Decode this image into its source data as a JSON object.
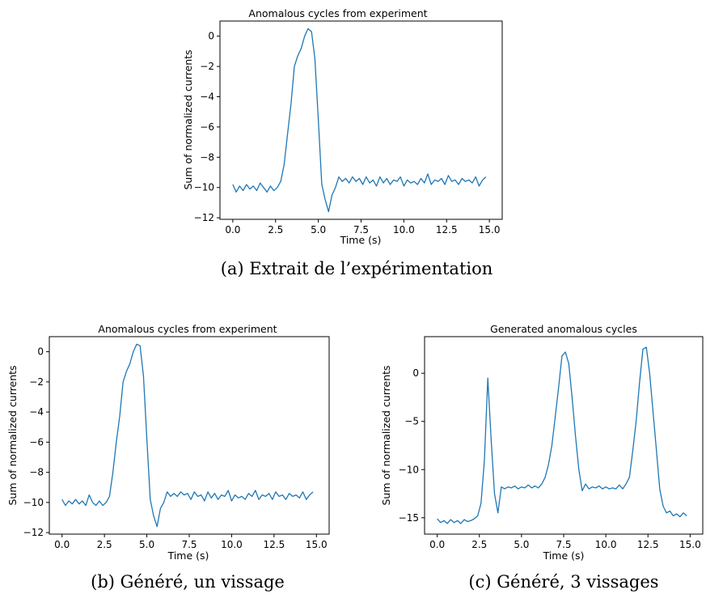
{
  "chart_data": [
    {
      "id": "a",
      "type": "line",
      "title": "Anomalous cycles from experiment",
      "xlabel": "Time (s)",
      "ylabel": "Sum of normalized currents",
      "xlim": [
        -0.75,
        15.75
      ],
      "ylim": [
        -12.1,
        1.0
      ],
      "xticks": [
        0,
        2.5,
        5,
        7.5,
        10,
        12.5,
        15
      ],
      "xtick_labels": [
        "0.0",
        "2.5",
        "5.0",
        "7.5",
        "10.0",
        "12.5",
        "15.0"
      ],
      "yticks": [
        0,
        -2,
        -4,
        -6,
        -8,
        -10,
        -12
      ],
      "ytick_labels": [
        "0",
        "−2",
        "−4",
        "−6",
        "−8",
        "−10",
        "−12"
      ],
      "grid": false,
      "caption": "(a) Extrait de l’expérimentation",
      "series": [
        {
          "color": "#1f77b4",
          "x": [
            0,
            0.2,
            0.4,
            0.6,
            0.8,
            1.0,
            1.2,
            1.4,
            1.6,
            1.8,
            2.0,
            2.2,
            2.4,
            2.6,
            2.8,
            3.0,
            3.2,
            3.4,
            3.6,
            3.8,
            4.0,
            4.2,
            4.4,
            4.6,
            4.8,
            5.0,
            5.2,
            5.4,
            5.6,
            5.8,
            6.0,
            6.2,
            6.4,
            6.6,
            6.8,
            7.0,
            7.2,
            7.4,
            7.6,
            7.8,
            8.0,
            8.2,
            8.4,
            8.6,
            8.8,
            9.0,
            9.2,
            9.4,
            9.6,
            9.8,
            10.0,
            10.2,
            10.4,
            10.6,
            10.8,
            11.0,
            11.2,
            11.4,
            11.6,
            11.8,
            12.0,
            12.2,
            12.4,
            12.6,
            12.8,
            13.0,
            13.2,
            13.4,
            13.6,
            13.8,
            14.0,
            14.2,
            14.4,
            14.6,
            14.8
          ],
          "y": [
            -9.8,
            -10.3,
            -9.9,
            -10.2,
            -9.8,
            -10.1,
            -9.9,
            -10.2,
            -9.7,
            -10.0,
            -10.3,
            -9.9,
            -10.2,
            -10.0,
            -9.6,
            -8.5,
            -6.5,
            -4.5,
            -2.0,
            -1.3,
            -0.8,
            0.0,
            0.5,
            0.3,
            -1.5,
            -5.5,
            -9.8,
            -10.8,
            -11.6,
            -10.5,
            -10.0,
            -9.3,
            -9.6,
            -9.4,
            -9.7,
            -9.3,
            -9.6,
            -9.4,
            -9.8,
            -9.3,
            -9.7,
            -9.5,
            -9.9,
            -9.3,
            -9.7,
            -9.4,
            -9.8,
            -9.5,
            -9.6,
            -9.3,
            -9.9,
            -9.5,
            -9.7,
            -9.6,
            -9.8,
            -9.4,
            -9.7,
            -9.1,
            -9.8,
            -9.5,
            -9.6,
            -9.4,
            -9.8,
            -9.2,
            -9.6,
            -9.5,
            -9.8,
            -9.4,
            -9.6,
            -9.5,
            -9.7,
            -9.3,
            -9.9,
            -9.5,
            -9.3
          ]
        }
      ]
    },
    {
      "id": "b",
      "type": "line",
      "title": "Anomalous cycles from experiment",
      "xlabel": "Time (s)",
      "ylabel": "Sum of normalized currents",
      "xlim": [
        -0.75,
        15.75
      ],
      "ylim": [
        -12.1,
        1.0
      ],
      "xticks": [
        0,
        2.5,
        5,
        7.5,
        10,
        12.5,
        15
      ],
      "xtick_labels": [
        "0.0",
        "2.5",
        "5.0",
        "7.5",
        "10.0",
        "12.5",
        "15.0"
      ],
      "yticks": [
        0,
        -2,
        -4,
        -6,
        -8,
        -10,
        -12
      ],
      "ytick_labels": [
        "0",
        "−2",
        "−4",
        "−6",
        "−8",
        "−10",
        "−12"
      ],
      "grid": false,
      "caption": "(b) Généré, un vissage",
      "series": [
        {
          "color": "#1f77b4",
          "x": [
            0,
            0.2,
            0.4,
            0.6,
            0.8,
            1.0,
            1.2,
            1.4,
            1.6,
            1.8,
            2.0,
            2.2,
            2.4,
            2.6,
            2.8,
            3.0,
            3.2,
            3.4,
            3.6,
            3.8,
            4.0,
            4.2,
            4.4,
            4.6,
            4.8,
            5.0,
            5.2,
            5.4,
            5.6,
            5.8,
            6.0,
            6.2,
            6.4,
            6.6,
            6.8,
            7.0,
            7.2,
            7.4,
            7.6,
            7.8,
            8.0,
            8.2,
            8.4,
            8.6,
            8.8,
            9.0,
            9.2,
            9.4,
            9.6,
            9.8,
            10.0,
            10.2,
            10.4,
            10.6,
            10.8,
            11.0,
            11.2,
            11.4,
            11.6,
            11.8,
            12.0,
            12.2,
            12.4,
            12.6,
            12.8,
            13.0,
            13.2,
            13.4,
            13.6,
            13.8,
            14.0,
            14.2,
            14.4,
            14.6,
            14.8
          ],
          "y": [
            -9.8,
            -10.2,
            -9.9,
            -10.1,
            -9.8,
            -10.1,
            -9.9,
            -10.2,
            -9.5,
            -10.0,
            -10.2,
            -9.9,
            -10.2,
            -10.0,
            -9.6,
            -8.0,
            -6.0,
            -4.3,
            -2.0,
            -1.3,
            -0.8,
            0.0,
            0.5,
            0.4,
            -1.6,
            -5.8,
            -9.8,
            -10.9,
            -11.6,
            -10.4,
            -10.0,
            -9.3,
            -9.6,
            -9.4,
            -9.6,
            -9.3,
            -9.5,
            -9.4,
            -9.8,
            -9.3,
            -9.6,
            -9.5,
            -9.9,
            -9.3,
            -9.7,
            -9.4,
            -9.8,
            -9.5,
            -9.6,
            -9.2,
            -9.9,
            -9.5,
            -9.7,
            -9.6,
            -9.8,
            -9.4,
            -9.6,
            -9.2,
            -9.8,
            -9.5,
            -9.6,
            -9.4,
            -9.8,
            -9.3,
            -9.6,
            -9.5,
            -9.8,
            -9.4,
            -9.6,
            -9.5,
            -9.7,
            -9.3,
            -9.8,
            -9.5,
            -9.3
          ]
        }
      ]
    },
    {
      "id": "c",
      "type": "line",
      "title": "Generated anomalous cycles",
      "xlabel": "Time (s)",
      "ylabel": "Sum of normalized currents",
      "xlim": [
        -0.75,
        15.75
      ],
      "ylim": [
        -16.7,
        3.8
      ],
      "xticks": [
        0,
        2.5,
        5,
        7.5,
        10,
        12.5,
        15
      ],
      "xtick_labels": [
        "0.0",
        "2.5",
        "5.0",
        "7.5",
        "10.0",
        "12.5",
        "15.0"
      ],
      "yticks": [
        0,
        -5,
        -10,
        -15
      ],
      "ytick_labels": [
        "0",
        "−5",
        "−10",
        "−15"
      ],
      "grid": false,
      "caption": "(c) Généré, 3 vissages",
      "series": [
        {
          "color": "#1f77b4",
          "x": [
            0,
            0.2,
            0.4,
            0.6,
            0.8,
            1.0,
            1.2,
            1.4,
            1.6,
            1.8,
            2.0,
            2.2,
            2.4,
            2.6,
            2.8,
            3.0,
            3.2,
            3.4,
            3.6,
            3.8,
            4.0,
            4.2,
            4.4,
            4.6,
            4.8,
            5.0,
            5.2,
            5.4,
            5.6,
            5.8,
            6.0,
            6.2,
            6.4,
            6.6,
            6.8,
            7.0,
            7.2,
            7.4,
            7.6,
            7.8,
            8.0,
            8.2,
            8.4,
            8.6,
            8.8,
            9.0,
            9.2,
            9.4,
            9.6,
            9.8,
            10.0,
            10.2,
            10.4,
            10.6,
            10.8,
            11.0,
            11.2,
            11.4,
            11.6,
            11.8,
            12.0,
            12.2,
            12.4,
            12.6,
            12.8,
            13.0,
            13.2,
            13.4,
            13.6,
            13.8,
            14.0,
            14.2,
            14.4,
            14.6,
            14.8
          ],
          "y": [
            -15.1,
            -15.5,
            -15.3,
            -15.6,
            -15.2,
            -15.5,
            -15.3,
            -15.6,
            -15.2,
            -15.4,
            -15.3,
            -15.1,
            -14.8,
            -13.5,
            -9.0,
            -0.5,
            -7.0,
            -12.5,
            -14.5,
            -11.8,
            -12.0,
            -11.8,
            -11.9,
            -11.7,
            -12.0,
            -11.8,
            -11.9,
            -11.6,
            -11.9,
            -11.7,
            -11.9,
            -11.5,
            -10.8,
            -9.5,
            -7.5,
            -4.5,
            -1.5,
            1.8,
            2.2,
            1.0,
            -2.5,
            -6.5,
            -10.0,
            -12.2,
            -11.5,
            -12.0,
            -11.8,
            -11.9,
            -11.7,
            -12.0,
            -11.8,
            -12.0,
            -11.9,
            -12.0,
            -11.6,
            -12.0,
            -11.5,
            -10.8,
            -8.0,
            -5.0,
            -1.0,
            2.5,
            2.7,
            0.0,
            -4.0,
            -8.0,
            -12.0,
            -13.8,
            -14.5,
            -14.3,
            -14.8,
            -14.6,
            -14.9,
            -14.5,
            -14.8
          ]
        }
      ]
    }
  ]
}
